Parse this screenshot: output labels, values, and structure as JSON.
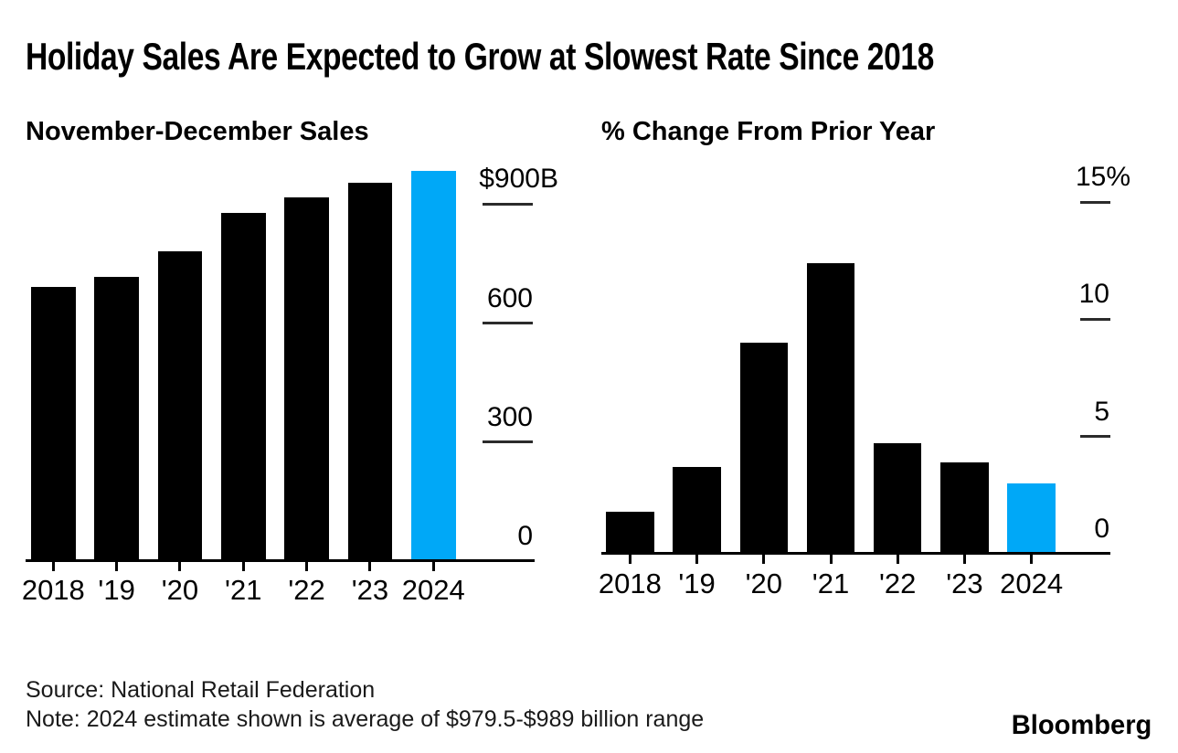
{
  "title": "Holiday Sales Are Expected to Grow at Slowest Rate Since 2018",
  "colors": {
    "bar_black": "#000000",
    "highlight_blue": "#00a8f7",
    "text": "#000000",
    "footer_text": "#1a1a1a"
  },
  "chart_data": [
    {
      "type": "bar",
      "title": "November-December Sales",
      "categories": [
        "2018",
        "'19",
        "'20",
        "'21",
        "'22",
        "'23",
        "2024"
      ],
      "values": [
        691,
        716,
        780,
        877,
        917,
        955,
        984
      ],
      "unit": "billions of US dollars",
      "ylim": [
        0,
        984
      ],
      "yticks": [
        {
          "value": 900,
          "label": "$900B"
        },
        {
          "value": 600,
          "label": "600"
        },
        {
          "value": 300,
          "label": "300"
        },
        {
          "value": 0,
          "label": "0"
        }
      ],
      "highlight_category": "2024",
      "bar_color": "#000000",
      "highlight_color": "#00a8f7",
      "grid": false,
      "legend": "none",
      "value_axis_side": "right"
    },
    {
      "type": "bar",
      "title": "% Change From Prior Year",
      "categories": [
        "2018",
        "'19",
        "'20",
        "'21",
        "'22",
        "'23",
        "2024"
      ],
      "values": [
        1.8,
        3.7,
        9.0,
        12.4,
        4.7,
        3.9,
        3.0
      ],
      "unit": "percent",
      "ylim": [
        0,
        15
      ],
      "yticks": [
        {
          "value": 15,
          "label": "15%"
        },
        {
          "value": 10,
          "label": "10"
        },
        {
          "value": 5,
          "label": "5"
        },
        {
          "value": 0,
          "label": "0"
        }
      ],
      "highlight_category": "2024",
      "bar_color": "#000000",
      "highlight_color": "#00a8f7",
      "grid": false,
      "legend": "none",
      "value_axis_side": "right"
    }
  ],
  "footer": {
    "source": "Source: National Retail Federation",
    "note": "Note: 2024 estimate shown is average of $979.5-$989 billion range"
  },
  "brand": "Bloomberg"
}
